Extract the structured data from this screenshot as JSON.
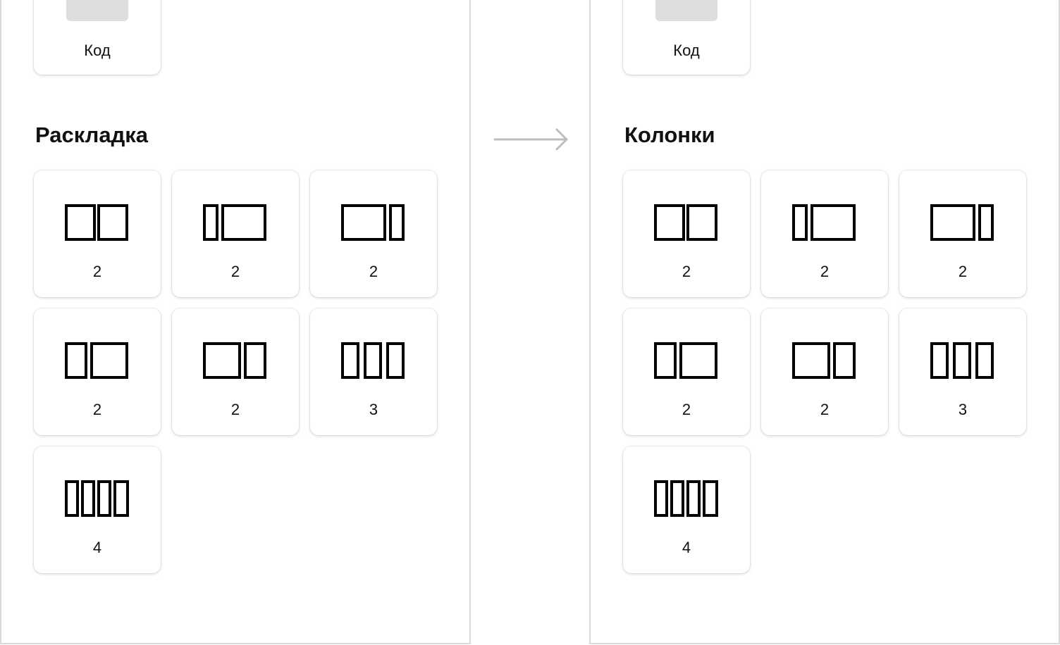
{
  "left_panel": {
    "code_card_label": "Код",
    "section_title": "Раскладка",
    "layouts": [
      {
        "icon": "two-equal-columns-icon",
        "count": "2"
      },
      {
        "icon": "narrow-wide-columns-icon",
        "count": "2"
      },
      {
        "icon": "wide-narrow-columns-icon",
        "count": "2"
      },
      {
        "icon": "one-third-two-thirds-columns-icon",
        "count": "2"
      },
      {
        "icon": "two-thirds-one-third-columns-icon",
        "count": "2"
      },
      {
        "icon": "three-columns-icon",
        "count": "3"
      },
      {
        "icon": "four-columns-icon",
        "count": "4"
      }
    ]
  },
  "right_panel": {
    "code_card_label": "Код",
    "section_title": "Колонки",
    "layouts": [
      {
        "icon": "two-equal-columns-icon",
        "count": "2"
      },
      {
        "icon": "narrow-wide-columns-icon",
        "count": "2"
      },
      {
        "icon": "wide-narrow-columns-icon",
        "count": "2"
      },
      {
        "icon": "one-third-two-thirds-columns-icon",
        "count": "2"
      },
      {
        "icon": "two-thirds-one-third-columns-icon",
        "count": "2"
      },
      {
        "icon": "three-columns-icon",
        "count": "3"
      },
      {
        "icon": "four-columns-icon",
        "count": "4"
      }
    ]
  },
  "arrow_icon": "arrow-right-icon",
  "colors": {
    "panel_border": "#d9d9d9",
    "arrow": "#bdbdbd",
    "thumb": "#dedede",
    "text": "#111111"
  }
}
